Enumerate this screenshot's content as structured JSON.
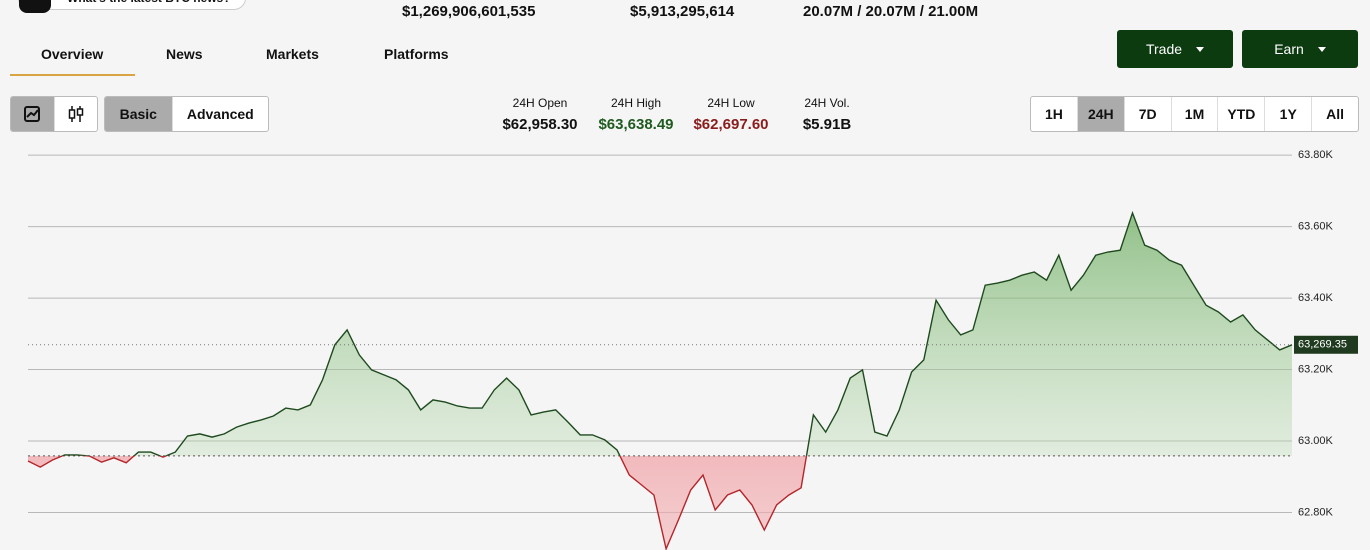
{
  "top_pill": "What's the latest BTC news?",
  "stats": [
    "$1,269,906,601,535",
    "$5,913,295,614",
    "20.07M / 20.07M / 21.00M"
  ],
  "tabs": [
    "Overview",
    "News",
    "Markets",
    "Platforms"
  ],
  "buttons": [
    "Trade",
    "Earn"
  ],
  "views": [
    "Basic",
    "Advanced"
  ],
  "summary": [
    {
      "label": "24H Open",
      "value": "$62,958.30"
    },
    {
      "label": "24H High",
      "value": "$63,638.49"
    },
    {
      "label": "24H Low",
      "value": "$62,697.60"
    },
    {
      "label": "24H Vol.",
      "value": "$5.91B"
    }
  ],
  "ranges": [
    "1H",
    "24H",
    "7D",
    "1M",
    "YTD",
    "1Y",
    "All"
  ],
  "chart_data": {
    "type": "area",
    "open": 62958.3,
    "current_price": {
      "value": 63269.35,
      "label": "63,269.35"
    },
    "values": [
      62944,
      62927,
      62947,
      62961,
      62961,
      62958,
      62941,
      62953,
      62939,
      62969,
      62969,
      62955,
      62969,
      63014,
      63020,
      63011,
      63020,
      63039,
      63050,
      63059,
      63070,
      63092,
      63087,
      63101,
      63171,
      63269,
      63311,
      63241,
      63199,
      63185,
      63171,
      63143,
      63087,
      63115,
      63109,
      63098,
      63092,
      63092,
      63143,
      63176,
      63143,
      63073,
      63081,
      63087,
      63053,
      63017,
      63017,
      63003,
      62975,
      62905,
      62877,
      62849,
      62698,
      62779,
      62863,
      62905,
      62807,
      62849,
      62863,
      62821,
      62751,
      62821,
      62849,
      62869,
      63073,
      63025,
      63087,
      63176,
      63199,
      63025,
      63014,
      63087,
      63193,
      63227,
      63394,
      63339,
      63297,
      63311,
      63436,
      63442,
      63450,
      63464,
      63473,
      63450,
      63520,
      63422,
      63464,
      63520,
      63529,
      63534,
      63638,
      63548,
      63534,
      63506,
      63492,
      63436,
      63380,
      63361,
      63333,
      63353,
      63311,
      63283,
      63255,
      63269.35
    ],
    "up_color": "#1f4a1f",
    "down_color": "#b3262b",
    "ylim": [
      62695,
      63820
    ],
    "yticks": [
      {
        "value": 62800,
        "label": "62.80K"
      },
      {
        "value": 63000,
        "label": "63.00K"
      },
      {
        "value": 63200,
        "label": "63.20K"
      },
      {
        "value": 63400,
        "label": "63.40K"
      },
      {
        "value": 63600,
        "label": "63.60K"
      },
      {
        "value": 63800,
        "label": "63.80K"
      }
    ],
    "grid": true
  }
}
